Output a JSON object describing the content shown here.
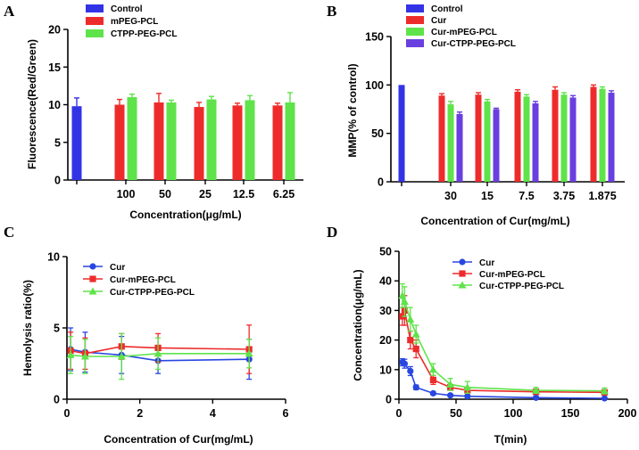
{
  "chart_data": [
    {
      "panel": "A",
      "type": "bar",
      "title": "",
      "xlabel": "Concentration(μg/mL)",
      "ylabel": "Fluorescence(Red/Green)",
      "ylim": [
        0,
        20
      ],
      "yticks": [
        "0",
        "5",
        "10",
        "15",
        "20"
      ],
      "groups": [
        "",
        "100",
        "50",
        "25",
        "12.5",
        "6.25"
      ],
      "series": [
        {
          "name": "Control",
          "color": "#3333e6",
          "values": [
            9.8,
            null,
            null,
            null,
            null,
            null
          ],
          "errors": [
            1.1,
            0,
            0,
            0,
            0,
            0
          ]
        },
        {
          "name": "mPEG-PCL",
          "color": "#ee2b2b",
          "values": [
            null,
            10.0,
            10.3,
            9.7,
            9.9,
            9.9
          ],
          "errors": [
            0,
            0.7,
            1.2,
            0.6,
            0.3,
            0.3
          ]
        },
        {
          "name": "CTPP-PEG-PCL",
          "color": "#5fe34a",
          "values": [
            null,
            11.0,
            10.3,
            10.7,
            10.6,
            10.3
          ],
          "errors": [
            0,
            0.4,
            0.3,
            0.4,
            0.6,
            1.3
          ]
        }
      ],
      "legend": "top-left"
    },
    {
      "panel": "B",
      "type": "bar",
      "title": "",
      "xlabel": "Concentration of Cur(mg/mL)",
      "ylabel": "MMP(% of control)",
      "ylim": [
        0,
        150
      ],
      "yticks": [
        "0",
        "50",
        "100",
        "150"
      ],
      "groups": [
        "",
        "30",
        "15",
        "7.5",
        "3.75",
        "1.875"
      ],
      "series": [
        {
          "name": "Control",
          "color": "#3333e6",
          "values": [
            100,
            null,
            null,
            null,
            null,
            null
          ],
          "errors": [
            0,
            0,
            0,
            0,
            0,
            0
          ]
        },
        {
          "name": "Cur",
          "color": "#ee2b2b",
          "values": [
            null,
            89,
            90,
            93,
            95,
            98
          ],
          "errors": [
            0,
            2,
            2,
            2,
            3,
            2
          ]
        },
        {
          "name": "Cur-mPEG-PCL",
          "color": "#5fe34a",
          "values": [
            null,
            80,
            83,
            88,
            90,
            96
          ],
          "errors": [
            0,
            3,
            2,
            2,
            2,
            2
          ]
        },
        {
          "name": "Cur-CTPP-PEG-PCL",
          "color": "#6a3fe0",
          "values": [
            null,
            70,
            75,
            81,
            87,
            92
          ],
          "errors": [
            0,
            2,
            1,
            2,
            2,
            2
          ]
        }
      ],
      "legend": "top-left"
    },
    {
      "panel": "C",
      "type": "line",
      "title": "",
      "xlabel": "Concentration of Cur(mg/mL)",
      "ylabel": "Hemolysis ratio(%)",
      "xlim": [
        0,
        6
      ],
      "ylim": [
        0,
        10
      ],
      "xticks": [
        "0",
        "2",
        "4",
        "6"
      ],
      "yticks": [
        "0",
        "5",
        "10"
      ],
      "series": [
        {
          "name": "Cur",
          "color": "#2846e0",
          "marker": "circle",
          "x": [
            0.1,
            0.5,
            1.5,
            2.5,
            5.0
          ],
          "y": [
            3.5,
            3.3,
            3.1,
            2.7,
            2.8
          ],
          "errors": [
            1.5,
            1.4,
            1.3,
            0.9,
            1.4
          ]
        },
        {
          "name": "Cur-mPEG-PCL",
          "color": "#ee2b2b",
          "marker": "square",
          "x": [
            0.1,
            0.5,
            1.5,
            2.5,
            5.0
          ],
          "y": [
            3.4,
            3.2,
            3.7,
            3.6,
            3.5
          ],
          "errors": [
            1.3,
            1.1,
            0.9,
            1.0,
            1.7
          ]
        },
        {
          "name": "Cur-CTPP-PEG-PCL",
          "color": "#5fe34a",
          "marker": "triangle",
          "x": [
            0.1,
            0.5,
            1.5,
            2.5,
            5.0
          ],
          "y": [
            3.1,
            3.0,
            3.0,
            3.2,
            3.2
          ],
          "errors": [
            1.3,
            1.2,
            1.6,
            1.1,
            1.0
          ]
        }
      ],
      "legend": "top-left"
    },
    {
      "panel": "D",
      "type": "line",
      "title": "",
      "xlabel": "T(min)",
      "ylabel": "Concentration(μg/mL)",
      "xlim": [
        0,
        200
      ],
      "ylim": [
        0,
        50
      ],
      "xticks": [
        "0",
        "50",
        "100",
        "150",
        "200"
      ],
      "yticks": [
        "0",
        "10",
        "20",
        "30",
        "40",
        "50"
      ],
      "series": [
        {
          "name": "Cur",
          "color": "#2846e0",
          "marker": "circle",
          "x": [
            3,
            5,
            10,
            15,
            30,
            45,
            60,
            120,
            180
          ],
          "y": [
            12.5,
            12,
            9.5,
            4,
            2,
            1.3,
            1,
            0.5,
            0.3
          ],
          "errors": [
            1.2,
            1.5,
            1.5,
            0.8,
            0.5,
            0.3,
            0.3,
            0.2,
            0.1
          ]
        },
        {
          "name": "Cur-mPEG-PCL",
          "color": "#ee2b2b",
          "marker": "square",
          "x": [
            3,
            5,
            10,
            15,
            30,
            45,
            60,
            120,
            180
          ],
          "y": [
            28,
            30,
            20,
            17,
            6.5,
            4,
            3,
            2.5,
            2.3
          ],
          "errors": [
            3,
            5,
            3,
            3,
            1.5,
            1,
            1,
            0.8,
            0.8
          ]
        },
        {
          "name": "Cur-CTPP-PEG-PCL",
          "color": "#5fe34a",
          "marker": "triangle",
          "x": [
            3,
            5,
            10,
            15,
            30,
            45,
            60,
            120,
            180
          ],
          "y": [
            35,
            33,
            27,
            22,
            10,
            5,
            4,
            3,
            2.8
          ],
          "errors": [
            4,
            5,
            4,
            3,
            2,
            2,
            2,
            1,
            1
          ]
        }
      ],
      "legend": "top-right"
    }
  ]
}
